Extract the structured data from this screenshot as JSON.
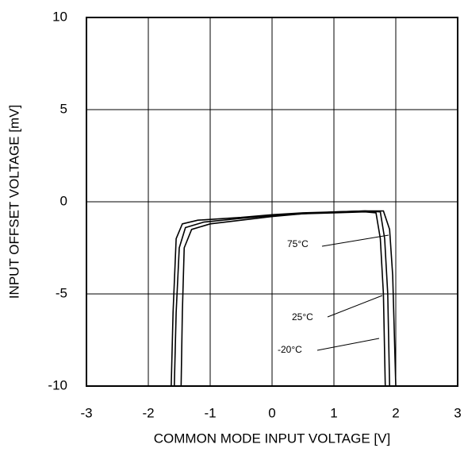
{
  "chart_data": {
    "type": "line",
    "xlabel": "COMMON MODE INPUT VOLTAGE [V]",
    "ylabel": "INPUT OFFSET VOLTAGE [mV]",
    "xlim": [
      -3,
      3
    ],
    "xticks": [
      -3,
      -2,
      -1,
      0,
      1,
      2,
      3
    ],
    "ylim": [
      -10,
      10
    ],
    "yticks": [
      -10,
      -5,
      0,
      5,
      10
    ],
    "grid": true,
    "series": [
      {
        "name": "75°C",
        "color": "#000000",
        "x": [
          -1.63,
          -1.6,
          -1.55,
          -1.45,
          -1.2,
          -0.5,
          0,
          0.5,
          1.0,
          1.5,
          1.8,
          1.9,
          1.95,
          2.0
        ],
        "values": [
          -10,
          -6,
          -2,
          -1.2,
          -1.0,
          -0.85,
          -0.7,
          -0.6,
          -0.55,
          -0.5,
          -0.5,
          -1.5,
          -4,
          -10
        ]
      },
      {
        "name": "25°C",
        "color": "#000000",
        "x": [
          -1.58,
          -1.55,
          -1.5,
          -1.4,
          -1.1,
          -0.5,
          0,
          0.5,
          1.0,
          1.5,
          1.75,
          1.82,
          1.87,
          1.9
        ],
        "values": [
          -10,
          -6,
          -2.5,
          -1.4,
          -1.1,
          -0.9,
          -0.75,
          -0.65,
          -0.55,
          -0.5,
          -0.55,
          -2,
          -5,
          -10
        ]
      },
      {
        "name": "-20°C",
        "color": "#000000",
        "x": [
          -1.47,
          -1.45,
          -1.42,
          -1.3,
          -1.0,
          -0.5,
          0,
          0.5,
          1.0,
          1.5,
          1.68,
          1.75,
          1.8,
          1.83
        ],
        "values": [
          -10,
          -6,
          -2.5,
          -1.5,
          -1.2,
          -1.0,
          -0.8,
          -0.65,
          -0.6,
          -0.55,
          -0.6,
          -2,
          -5,
          -10
        ]
      }
    ]
  }
}
